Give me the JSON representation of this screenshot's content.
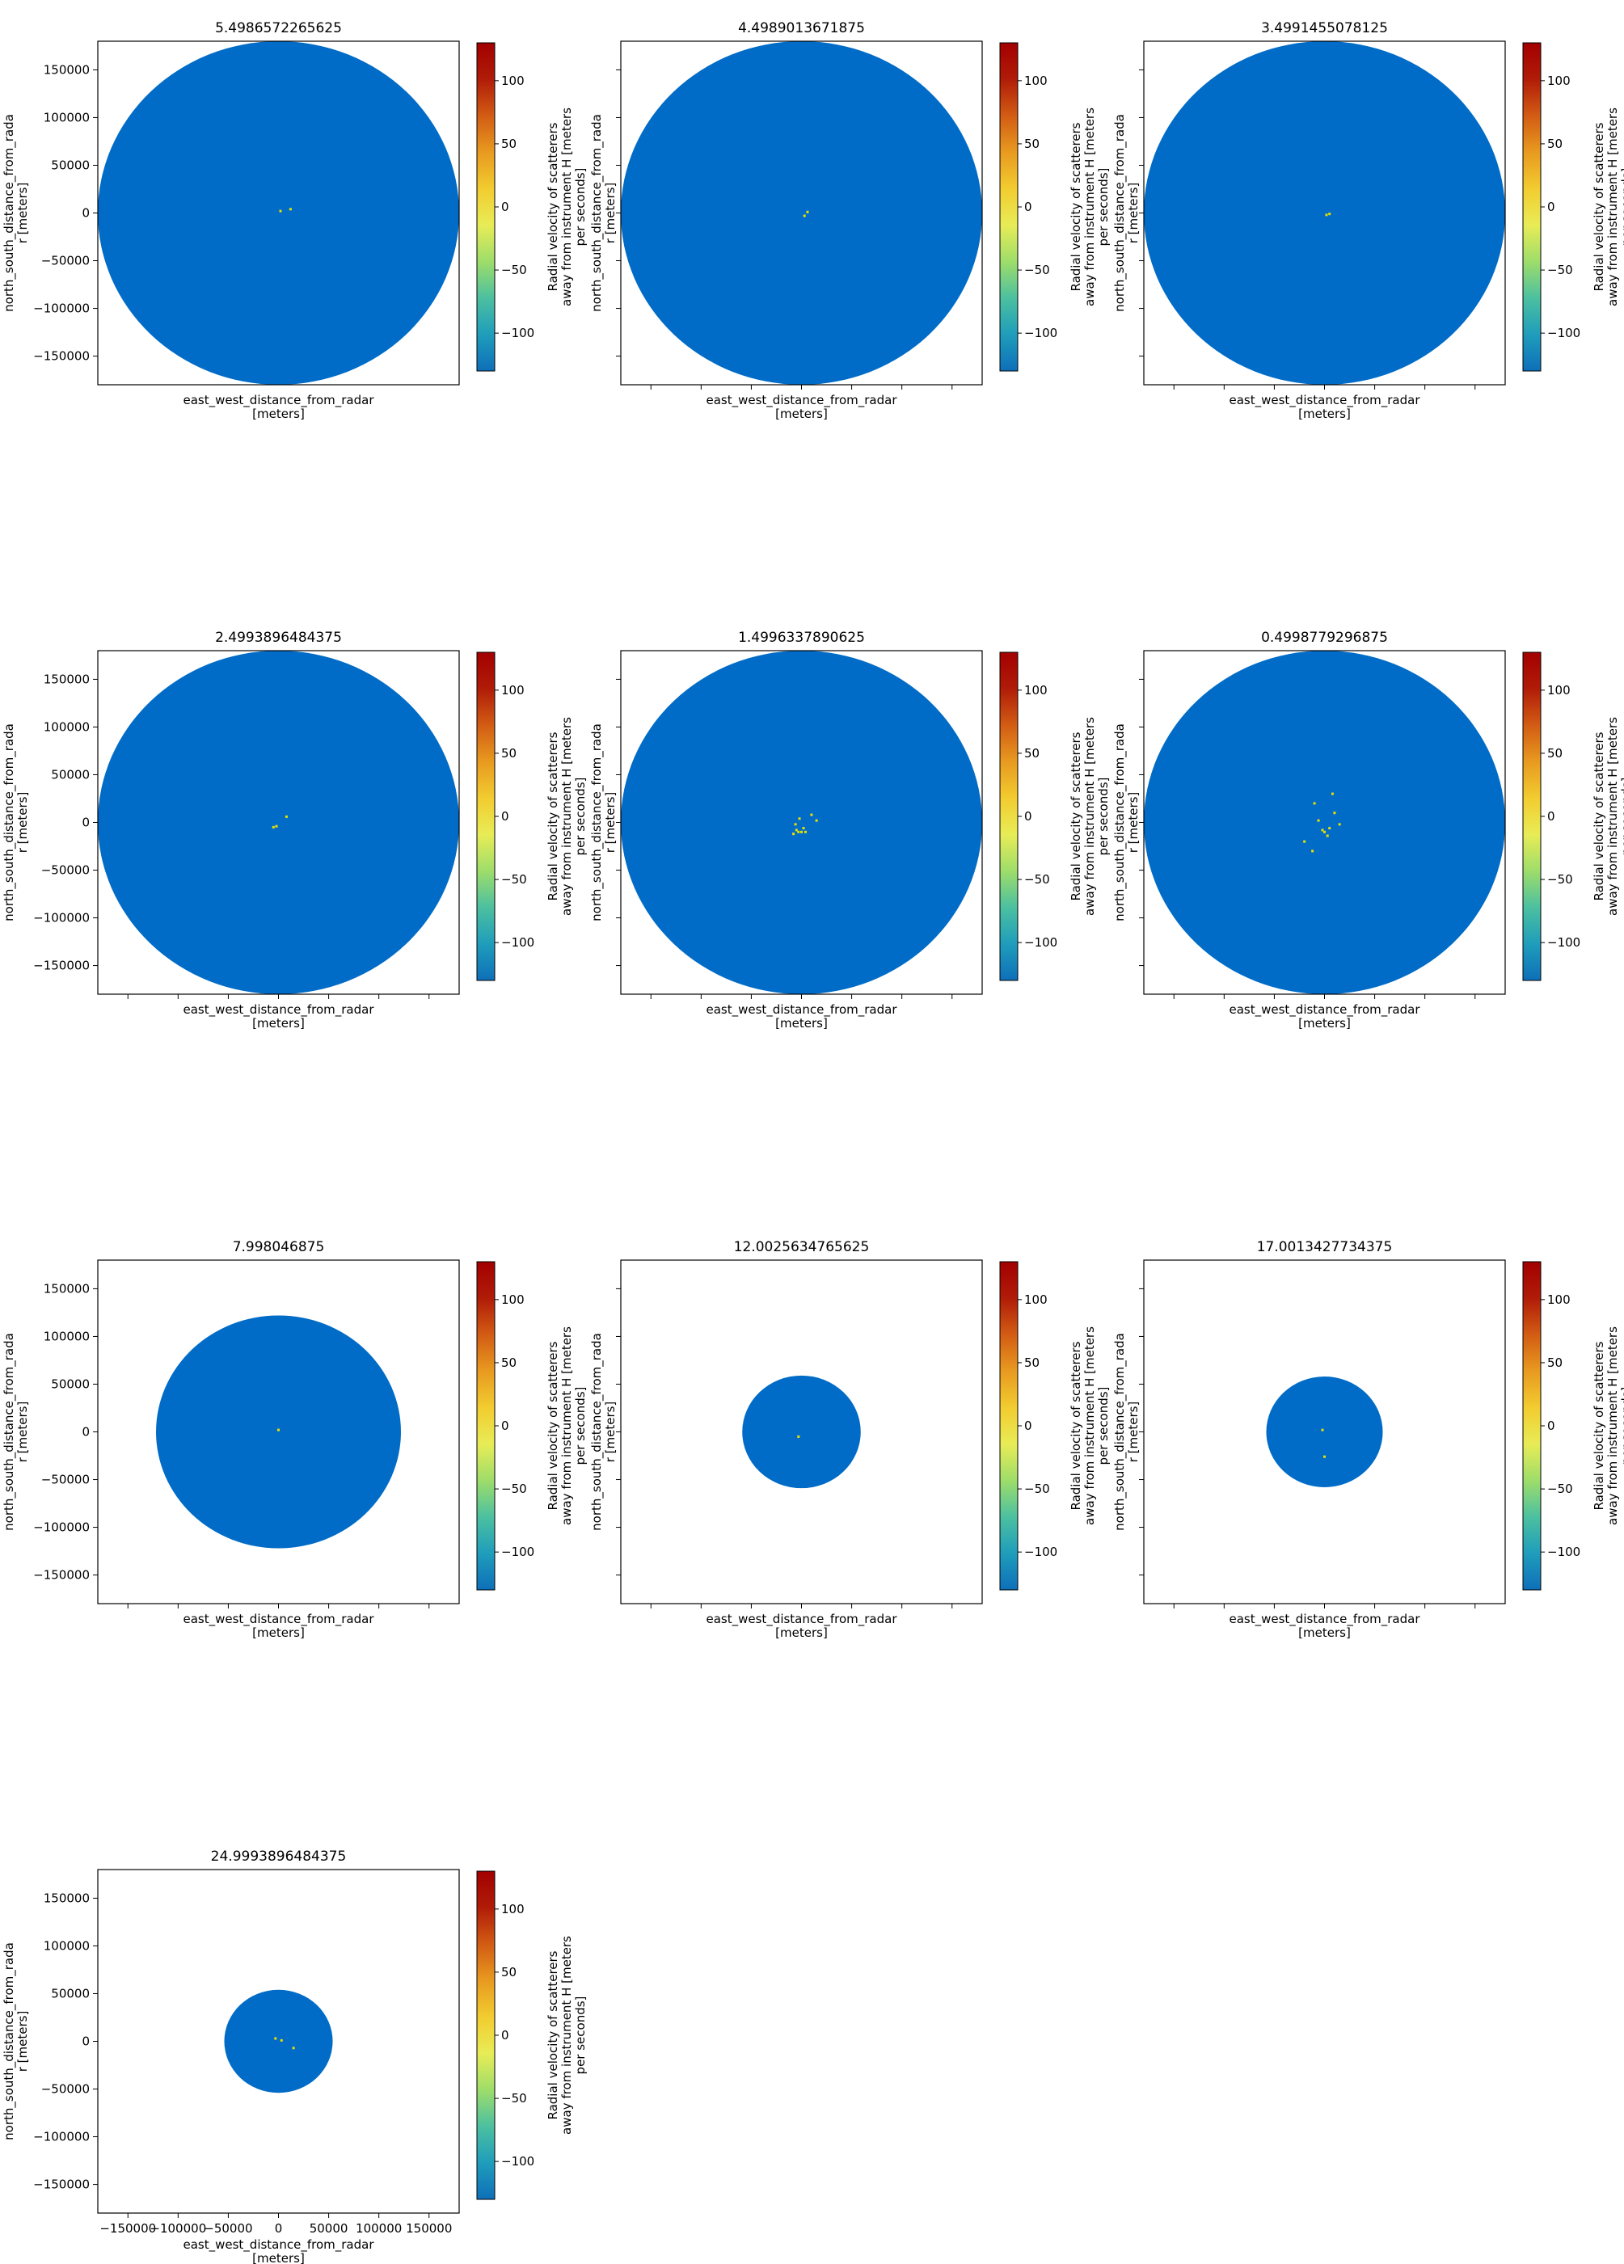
{
  "figure": {
    "colormap": "RdYlBu-style radar velocity (blue low, yellow mid, red high)",
    "colors": {
      "disk": "#006cc7",
      "axes_frame": "#000000",
      "scatter_speckle": "#e8e000",
      "colorbar_stops": [
        "#0e6fb9",
        "#1f9dbb",
        "#4cc0a0",
        "#9edd6a",
        "#e8ec56",
        "#f2cc30",
        "#e89a20",
        "#d25c14",
        "#b01c08",
        "#a30000"
      ]
    }
  },
  "chart_data": [
    {
      "type": "heatmap",
      "title": "5.4986572265625",
      "xlabel": [
        "east_west_distance_from_radar",
        "[meters]"
      ],
      "ylabel": [
        "north_south_distance_from_rada",
        "r [meters]"
      ],
      "xlim": [
        -180000,
        180000
      ],
      "ylim": [
        -180000,
        180000
      ],
      "xticks": [],
      "xtick_labels_shown": false,
      "yticks": [
        150000,
        100000,
        50000,
        0,
        -50000,
        -100000,
        -150000
      ],
      "yticks_shown": true,
      "disk_radius_m": 180000,
      "colorbar": {
        "label": [
          "Radial velocity of scatterers",
          "away from instrument H [meters",
          "per seconds]"
        ],
        "range": [
          -130,
          130
        ],
        "ticks": [
          100,
          50,
          0,
          -50,
          -100
        ]
      },
      "speckles": [
        [
          2000,
          2000
        ],
        [
          12000,
          4000
        ]
      ]
    },
    {
      "type": "heatmap",
      "title": "4.4989013671875",
      "xlabel": [
        "east_west_distance_from_radar",
        "[meters]"
      ],
      "ylabel": [
        "north_south_distance_from_rada",
        "r [meters]"
      ],
      "xlim": [
        -180000,
        180000
      ],
      "ylim": [
        -180000,
        180000
      ],
      "xtick_labels_shown": false,
      "yticks": [
        150000,
        100000,
        50000,
        0,
        -50000,
        -100000,
        -150000
      ],
      "yticks_shown": false,
      "disk_radius_m": 180000,
      "colorbar": {
        "label": [
          "Radial velocity of scatterers",
          "away from instrument H [meters",
          "per seconds]"
        ],
        "range": [
          -130,
          130
        ],
        "ticks": [
          100,
          50,
          0,
          -50,
          -100
        ]
      },
      "speckles": [
        [
          3000,
          -3000
        ],
        [
          6000,
          1000
        ]
      ]
    },
    {
      "type": "heatmap",
      "title": "3.4991455078125",
      "xlabel": [
        "east_west_distance_from_radar",
        "[meters]"
      ],
      "ylabel": [
        "north_south_distance_from_rada",
        "r [meters]"
      ],
      "xlim": [
        -180000,
        180000
      ],
      "ylim": [
        -180000,
        180000
      ],
      "xtick_labels_shown": false,
      "yticks": [
        150000,
        100000,
        50000,
        0,
        -50000,
        -100000,
        -150000
      ],
      "yticks_shown": false,
      "disk_radius_m": 180000,
      "colorbar": {
        "label": [
          "Radial velocity of scatterers",
          "away from instrument H [meters",
          "per seconds]"
        ],
        "range": [
          -130,
          130
        ],
        "ticks": [
          100,
          50,
          0,
          -50,
          -100
        ]
      },
      "speckles": [
        [
          2000,
          -2000
        ],
        [
          5000,
          -1000
        ]
      ]
    },
    {
      "type": "heatmap",
      "title": "2.4993896484375",
      "xlabel": [
        "east_west_distance_from_radar",
        "[meters]"
      ],
      "ylabel": [
        "north_south_distance_from_rada",
        "r [meters]"
      ],
      "xlim": [
        -180000,
        180000
      ],
      "ylim": [
        -180000,
        180000
      ],
      "xtick_labels_shown": false,
      "yticks": [
        150000,
        100000,
        50000,
        0,
        -50000,
        -100000,
        -150000
      ],
      "yticks_shown": true,
      "disk_radius_m": 180000,
      "colorbar": {
        "label": [
          "Radial velocity of scatterers",
          "away from instrument H [meters",
          "per seconds]"
        ],
        "range": [
          -130,
          130
        ],
        "ticks": [
          100,
          50,
          0,
          -50,
          -100
        ]
      },
      "speckles": [
        [
          -5000,
          -5000
        ],
        [
          -2000,
          -4000
        ],
        [
          8000,
          6000
        ]
      ]
    },
    {
      "type": "heatmap",
      "title": "1.4996337890625",
      "xlabel": [
        "east_west_distance_from_radar",
        "[meters]"
      ],
      "ylabel": [
        "north_south_distance_from_rada",
        "r [meters]"
      ],
      "xlim": [
        -180000,
        180000
      ],
      "ylim": [
        -180000,
        180000
      ],
      "xtick_labels_shown": false,
      "yticks": [
        150000,
        100000,
        50000,
        0,
        -50000,
        -100000,
        -150000
      ],
      "yticks_shown": false,
      "disk_radius_m": 180000,
      "colorbar": {
        "label": [
          "Radial velocity of scatterers",
          "away from instrument H [meters",
          "per seconds]"
        ],
        "range": [
          -130,
          130
        ],
        "ticks": [
          100,
          50,
          0,
          -50,
          -100
        ]
      },
      "speckles": [
        [
          -5000,
          -8000
        ],
        [
          -3000,
          -10000
        ],
        [
          0,
          -10000
        ],
        [
          4000,
          -10000
        ],
        [
          -6000,
          -2000
        ],
        [
          10000,
          8000
        ],
        [
          15000,
          2000
        ],
        [
          -2000,
          4000
        ],
        [
          2000,
          -6000
        ],
        [
          -8000,
          -12000
        ]
      ]
    },
    {
      "type": "heatmap",
      "title": "0.4998779296875",
      "xlabel": [
        "east_west_distance_from_radar",
        "[meters]"
      ],
      "ylabel": [
        "north_south_distance_from_rada",
        "r [meters]"
      ],
      "xlim": [
        -180000,
        180000
      ],
      "ylim": [
        -180000,
        180000
      ],
      "xtick_labels_shown": false,
      "yticks": [
        150000,
        100000,
        50000,
        0,
        -50000,
        -100000,
        -150000
      ],
      "yticks_shown": false,
      "disk_radius_m": 180000,
      "colorbar": {
        "label": [
          "Radial velocity of scatterers",
          "away from instrument H [meters",
          "per seconds]"
        ],
        "range": [
          -130,
          130
        ],
        "ticks": [
          100,
          50,
          0,
          -50,
          -100
        ]
      },
      "speckles": [
        [
          -2000,
          -8000
        ],
        [
          0,
          -10000
        ],
        [
          5000,
          -6000
        ],
        [
          -10000,
          20000
        ],
        [
          8000,
          30000
        ],
        [
          -20000,
          -20000
        ],
        [
          15000,
          -2000
        ],
        [
          -6000,
          2000
        ],
        [
          10000,
          10000
        ],
        [
          -12000,
          -30000
        ],
        [
          3000,
          -14000
        ]
      ]
    },
    {
      "type": "heatmap",
      "title": "7.998046875",
      "xlabel": [
        "east_west_distance_from_radar",
        "[meters]"
      ],
      "ylabel": [
        "north_south_distance_from_rada",
        "r [meters]"
      ],
      "xlim": [
        -180000,
        180000
      ],
      "ylim": [
        -180000,
        180000
      ],
      "xtick_labels_shown": false,
      "yticks": [
        150000,
        100000,
        50000,
        0,
        -50000,
        -100000,
        -150000
      ],
      "yticks_shown": true,
      "disk_radius_m": 122000,
      "colorbar": {
        "label": [
          "Radial velocity of scatterers",
          "away from instrument H [meters",
          "per seconds]"
        ],
        "range": [
          -130,
          130
        ],
        "ticks": [
          100,
          50,
          0,
          -50,
          -100
        ]
      },
      "speckles": [
        [
          0,
          2000
        ]
      ]
    },
    {
      "type": "heatmap",
      "title": "12.0025634765625",
      "xlabel": [
        "east_west_distance_from_radar",
        "[meters]"
      ],
      "ylabel": [
        "north_south_distance_from_rada",
        "r [meters]"
      ],
      "xlim": [
        -180000,
        180000
      ],
      "ylim": [
        -180000,
        180000
      ],
      "xtick_labels_shown": false,
      "yticks": [
        150000,
        100000,
        50000,
        0,
        -50000,
        -100000,
        -150000
      ],
      "yticks_shown": false,
      "disk_radius_m": 59000,
      "colorbar": {
        "label": [
          "Radial velocity of scatterers",
          "away from instrument H [meters",
          "per seconds]"
        ],
        "range": [
          -130,
          130
        ],
        "ticks": [
          100,
          50,
          0,
          -50,
          -100
        ]
      },
      "speckles": [
        [
          -3000,
          -5000
        ]
      ]
    },
    {
      "type": "heatmap",
      "title": "17.0013427734375",
      "xlabel": [
        "east_west_distance_from_radar",
        "[meters]"
      ],
      "ylabel": [
        "north_south_distance_from_rada",
        "r [meters]"
      ],
      "xlim": [
        -180000,
        180000
      ],
      "ylim": [
        -180000,
        180000
      ],
      "xtick_labels_shown": false,
      "yticks": [
        150000,
        100000,
        50000,
        0,
        -50000,
        -100000,
        -150000
      ],
      "yticks_shown": false,
      "disk_radius_m": 58000,
      "colorbar": {
        "label": [
          "Radial velocity of scatterers",
          "away from instrument H [meters",
          "per seconds]"
        ],
        "range": [
          -130,
          130
        ],
        "ticks": [
          100,
          50,
          0,
          -50,
          -100
        ]
      },
      "speckles": [
        [
          -2000,
          2000
        ],
        [
          0,
          -26000
        ]
      ]
    },
    {
      "type": "heatmap",
      "title": "24.9993896484375",
      "xlabel": [
        "east_west_distance_from_radar",
        "[meters]"
      ],
      "ylabel": [
        "north_south_distance_from_rada",
        "r [meters]"
      ],
      "xlim": [
        -180000,
        180000
      ],
      "ylim": [
        -180000,
        180000
      ],
      "xticks": [
        -150000,
        -100000,
        -50000,
        0,
        50000,
        100000,
        150000
      ],
      "xtick_labels": [
        "−150000",
        "−100000",
        "−50000",
        "0",
        "50000",
        "100000",
        "150000"
      ],
      "xtick_labels_shown": true,
      "yticks": [
        150000,
        100000,
        50000,
        0,
        -50000,
        -100000,
        -150000
      ],
      "yticks_shown": true,
      "disk_radius_m": 54000,
      "colorbar": {
        "label": [
          "Radial velocity of scatterers",
          "away from instrument H [meters",
          "per seconds]"
        ],
        "range": [
          -130,
          130
        ],
        "ticks": [
          100,
          50,
          0,
          -50,
          -100
        ]
      },
      "speckles": [
        [
          -3000,
          3000
        ],
        [
          3000,
          1000
        ],
        [
          15000,
          -7000
        ]
      ]
    }
  ]
}
